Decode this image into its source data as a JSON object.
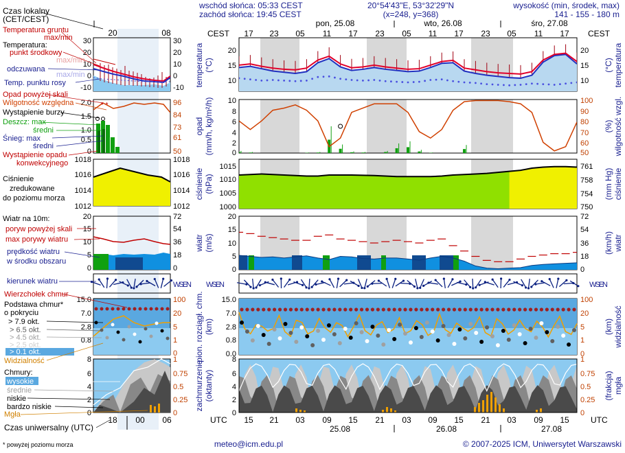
{
  "header": {
    "local_time_label": "Czas lokalny",
    "local_time_zone": "(CET/CEST)",
    "sunrise": "wschód słońca: 05:33 CEST",
    "sunset": "zachód słońca: 19:45 CEST",
    "coords": "20°54'43\"E, 53°32'29\"N",
    "grid": "(x=248,  y=368)",
    "elevation_label": "wysokość (min, środek, max)",
    "elevation_values": "141 - 155 - 180 m",
    "cest": "CEST",
    "utc": "UTC",
    "universal_time": "Czas uniwersalny (UTC)",
    "footnote": "* powyżej poziomu morza",
    "email": "meteo@icm.edu.pl",
    "copyright": "© 2007-2025 ICM, Uniwersytet Warszawski"
  },
  "time": {
    "small_top_ticks": [
      "20",
      "02",
      "08"
    ],
    "small_bottom_ticks": [
      "18",
      "00",
      "06"
    ],
    "main_top_ticks": [
      "17",
      "23",
      "05",
      "11",
      "17",
      "23",
      "05",
      "11",
      "17",
      "23",
      "05",
      "11",
      "17"
    ],
    "main_bottom_ticks": [
      "15",
      "21",
      "03",
      "09",
      "15",
      "21",
      "03",
      "09",
      "15",
      "21",
      "03",
      "09",
      "15"
    ],
    "day_labels_top": [
      "pon, 25.08",
      "wto, 26.08",
      "śro, 27.08"
    ],
    "day_labels_bottom": [
      "25.08",
      "26.08",
      "27.08"
    ]
  },
  "legend": {
    "temperature": {
      "ground": "Temperatura gruntu",
      "ground_range": "max/min",
      "title": "Temperatura:",
      "midpoint": "punkt środkowy",
      "maxmin": "max/min",
      "perceived": "odczuwana",
      "maxmin2": "max/min",
      "dewpoint": "Temp. punktu rosy",
      "left_ticks": [
        "30",
        "20",
        "10",
        "0",
        "-10"
      ],
      "right_ticks": [
        "30",
        "20",
        "10",
        "0",
        "-10"
      ]
    },
    "precip": {
      "over_scale": "Opad powyżej skali",
      "humidity": "Wilgotność względna",
      "storm": "Wystąpienie burzy",
      "rain_max": "Deszcz: max",
      "rain_mean": "średni",
      "snow_max": "Śnieg:     max",
      "snow_mean": "średni",
      "occurrence1": "Wystąpienie opadu",
      "occurrence2": "konwekcyjnego",
      "left_ticks": [
        "2.0",
        "1.5",
        "1.0",
        "0.5",
        "0"
      ],
      "right_ticks": [
        "96",
        "84",
        "73",
        "61",
        "50"
      ]
    },
    "pressure": {
      "title1": "Ciśnienie",
      "title2": "zredukowane",
      "title3": "do poziomu morza",
      "left_ticks": [
        "1018",
        "1016",
        "1014",
        "1012"
      ],
      "right_ticks": [
        "1018",
        "1016",
        "1014",
        "1012"
      ]
    },
    "wind": {
      "title": "Wiatr na 10m:",
      "gust_over": "poryw powyżej skali",
      "gust_max": "max porywy wiatru",
      "mean": "prędkość wiatru",
      "mean2": "w środku obszaru",
      "left_ticks": [
        "20",
        "15",
        "10",
        "5",
        "0"
      ],
      "right_ticks": [
        "72",
        "54",
        "36",
        "18",
        "0"
      ],
      "direction": "kierunek wiatru"
    },
    "clouds": {
      "top": "Wierzchołek chmur",
      "base1": "Podstawa chmur*",
      "base2": "o pokryciu",
      "oct79": "> 7.9 okt.",
      "oct65": "> 6.5 okt.",
      "oct45": "> 4.5 okt.",
      "oct25": "> 2.5 okt.",
      "oct01": "> 0.1 okt.",
      "visibility": "Widzialność",
      "left_ticks": [
        "15.0",
        "7.0",
        "2.8",
        "0.8"
      ],
      "right_ticks": [
        "100",
        "20",
        "5",
        "1",
        "0"
      ]
    },
    "cloud_cover": {
      "title": "Chmury:",
      "high": "wysokie",
      "mid": "średnie",
      "low": "niskie",
      "very_low": "bardzo niskie",
      "fog": "Mgła",
      "left_ticks": [
        "8",
        "6",
        "4",
        "2",
        "0"
      ],
      "right_ticks": [
        "1",
        "0.75",
        "0.5",
        "0.25",
        "0"
      ]
    }
  },
  "axes": {
    "temp": {
      "left": "temperatura",
      "left_unit": "(°C)",
      "right": "temperatura",
      "right_unit": "(°C)",
      "left_ticks": [
        "20",
        "15",
        "10"
      ],
      "right_ticks": [
        "20",
        "15",
        "10"
      ]
    },
    "precip": {
      "left": "opad",
      "left_unit": "(mm/h, kg/m²/h)",
      "right": "wilgotność wzgl.",
      "right_unit": "(%)",
      "left_ticks": [
        "10",
        "8",
        "6",
        "4",
        "2",
        "0"
      ],
      "right_ticks": [
        "100",
        "90",
        "80",
        "70",
        "60",
        "50"
      ]
    },
    "pressure": {
      "left": "ciśnienie",
      "left_unit": "(hPa)",
      "right": "ciśnienie",
      "right_unit": "(mm Hg)",
      "left_ticks": [
        "1015",
        "1010",
        "1005",
        "1000"
      ],
      "right_ticks": [
        "761",
        "758",
        "754",
        "750"
      ]
    },
    "wind": {
      "left": "wiatr",
      "left_unit": "(m/s)",
      "right": "wiatr",
      "right_unit": "(km/h)",
      "left_ticks": [
        "20",
        "15",
        "10",
        "5",
        "0"
      ],
      "right_ticks": [
        "72",
        "54",
        "36",
        "18",
        "0"
      ]
    },
    "clouds": {
      "left": "pion. rozciągł. chm.",
      "left_unit": "(km)",
      "right": "widzialność",
      "right_unit": "(km)",
      "left_ticks": [
        "15.0",
        "7.0",
        "2.8",
        "0.8",
        "0.0"
      ],
      "right_ticks": [
        "100",
        "20",
        "5",
        "1",
        "0"
      ]
    },
    "cover": {
      "left": "zachmurzenie",
      "left_unit": "(oktanty)",
      "right": "mgła",
      "right_unit": "(frakcja)",
      "left_ticks": [
        "8",
        "6",
        "4",
        "2",
        "0"
      ],
      "right_ticks": [
        "1",
        "0.75",
        "0.5",
        "0.25",
        "0"
      ]
    },
    "compass": "WSEN"
  },
  "colors": {
    "temp": "#e0002a",
    "perceived": "#2030c0",
    "dewpoint": "#4a50e0",
    "humidity": "#d04000",
    "rain": "#10a010",
    "pressure_fill_hi": "#f0f000",
    "pressure_fill_lo": "#90e000",
    "wind_fill": "#1090e0",
    "wind_dark": "#104a90",
    "gust": "#c00000",
    "sky": "#8ccaf0",
    "night": "#d8d8d8",
    "fog": "#f0a000",
    "arrow": "#0a2080",
    "label_red": "#c00000",
    "label_blue": "#1a2090"
  },
  "chart_data": [
    {
      "type": "line",
      "title": "temperatura (°C)",
      "ylim": [
        6,
        24
      ],
      "series": [
        {
          "name": "temperatura",
          "values": [
            14.8,
            15.2,
            14.4,
            13.8,
            13.4,
            13.2,
            13.8,
            16.5,
            17.8,
            15.2,
            13.9,
            14.2,
            14.8,
            14.2,
            13.8,
            13.4,
            13.6,
            14.8,
            16.0,
            16.4,
            13.8,
            13.2,
            12.6,
            12.2,
            12.0,
            11.8,
            12.6,
            16.5,
            18.4,
            18.8,
            16.0
          ]
        },
        {
          "name": "odczuwana",
          "values": [
            14.0,
            14.4,
            13.6,
            12.8,
            12.4,
            12.0,
            12.6,
            15.6,
            17.0,
            14.2,
            13.0,
            13.4,
            14.0,
            13.4,
            13.0,
            12.6,
            12.8,
            14.0,
            15.4,
            15.6,
            12.8,
            12.0,
            11.4,
            11.0,
            10.6,
            10.4,
            11.4,
            15.8,
            18.0,
            18.4,
            15.2
          ]
        },
        {
          "name": "punkt rosy",
          "values": [
            10.4,
            10.0,
            9.6,
            9.8,
            9.6,
            9.4,
            9.6,
            10.8,
            11.0,
            10.2,
            9.8,
            9.6,
            9.8,
            9.4,
            9.2,
            9.0,
            9.2,
            9.8,
            10.0,
            9.4,
            9.0,
            8.8,
            8.4,
            8.2,
            8.0,
            8.2,
            8.6,
            8.4,
            8.2,
            8.6,
            9.0
          ]
        }
      ]
    },
    {
      "type": "bar",
      "title": "opad (mm/h) i wilgotność wzgl. (%)",
      "ylim": [
        0,
        10
      ],
      "series": [
        {
          "name": "opad",
          "values": [
            0.4,
            0.2,
            0.0,
            0.0,
            0.0,
            0.0,
            0.1,
            0.2,
            5.0,
            1.6,
            0.3,
            0.2,
            0.0,
            0.4,
            1.8,
            2.2,
            0.6,
            0.1,
            0.0,
            0.0,
            1.5,
            0.0,
            0.0,
            0.0,
            0.0,
            0.0,
            0.0,
            0.0,
            0.0,
            0.0,
            0.0
          ]
        },
        {
          "name": "wilgotność",
          "values": [
            80,
            72,
            80,
            90,
            92,
            95,
            90,
            80,
            56,
            64,
            88,
            92,
            96,
            96,
            96,
            88,
            70,
            64,
            72,
            90,
            98,
            99,
            99,
            99,
            98,
            96,
            88,
            60,
            52,
            56,
            79
          ]
        }
      ]
    },
    {
      "type": "area",
      "title": "ciśnienie (hPa)",
      "ylim": [
        1000,
        1020
      ],
      "series": [
        {
          "name": "ciśnienie",
          "values": [
            1012.8,
            1013.0,
            1013.2,
            1013.0,
            1012.8,
            1012.6,
            1012.4,
            1012.4,
            1012.8,
            1012.8,
            1012.8,
            1012.7,
            1012.6,
            1012.4,
            1012.2,
            1012.2,
            1012.2,
            1012.2,
            1012.4,
            1012.8,
            1013.0,
            1013.2,
            1013.4,
            1013.8,
            1014.2,
            1014.6,
            1015.4,
            1015.8,
            1016.0,
            1016.0,
            1015.8
          ]
        }
      ]
    },
    {
      "type": "area",
      "title": "wiatr (m/s)",
      "ylim": [
        0,
        20
      ],
      "series": [
        {
          "name": "prędkość",
          "values": [
            5.4,
            5.0,
            4.6,
            4.8,
            4.4,
            4.8,
            5.2,
            4.4,
            3.8,
            5.0,
            4.8,
            4.2,
            4.0,
            4.4,
            4.4,
            4.0,
            3.6,
            4.4,
            5.0,
            4.4,
            3.2,
            1.4,
            0.6,
            0.4,
            0.6,
            0.8,
            1.6,
            2.0,
            2.2,
            2.4,
            2.6
          ]
        },
        {
          "name": "porywy",
          "values": [
            14.0,
            13.5,
            12.5,
            12.0,
            11.5,
            11.0,
            11.0,
            12.5,
            13.0,
            11.5,
            11.0,
            10.5,
            10.0,
            10.5,
            11.0,
            10.5,
            10.0,
            11.0,
            11.5,
            9.0,
            7.0,
            5.0,
            3.5,
            3.0,
            3.0,
            4.0,
            5.0,
            5.5,
            6.0,
            6.0,
            6.5
          ]
        }
      ]
    }
  ]
}
